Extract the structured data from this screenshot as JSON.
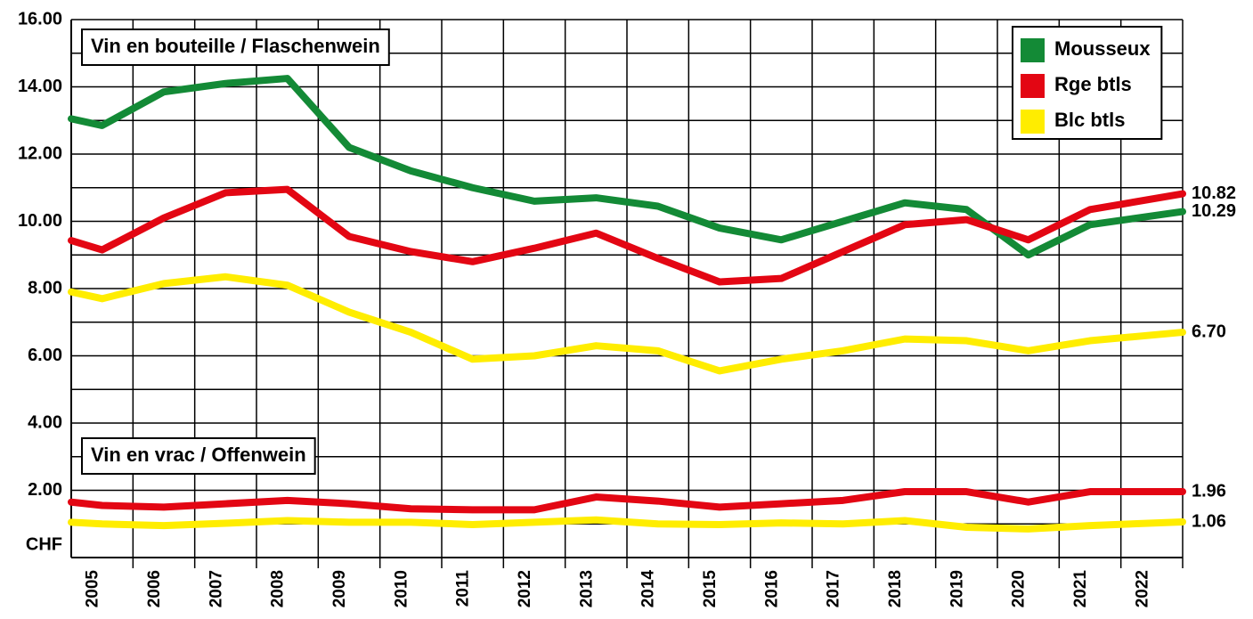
{
  "chart_data": {
    "type": "line",
    "annotations": [
      "Vin en bouteille / Flaschenwein",
      "Vin en vrac / Offenwein"
    ],
    "x": [
      2004.5,
      2005,
      2006,
      2007,
      2008,
      2009,
      2010,
      2011,
      2012,
      2013,
      2014,
      2015,
      2016,
      2017,
      2018,
      2019,
      2020,
      2021,
      2022.5
    ],
    "xlim": [
      2004.5,
      2022.5
    ],
    "xticks": [
      2005,
      2006,
      2007,
      2008,
      2009,
      2010,
      2011,
      2012,
      2013,
      2014,
      2015,
      2016,
      2017,
      2018,
      2019,
      2020,
      2021,
      2022
    ],
    "ylim": [
      0,
      16
    ],
    "yticks": [
      {
        "value": 0,
        "label": "CHF"
      },
      {
        "value": 2,
        "label": "2.00"
      },
      {
        "value": 4,
        "label": "4.00"
      },
      {
        "value": 6,
        "label": "6.00"
      },
      {
        "value": 8,
        "label": "8.00"
      },
      {
        "value": 10,
        "label": "10.00"
      },
      {
        "value": 12,
        "label": "12.00"
      },
      {
        "value": 14,
        "label": "14.00"
      },
      {
        "value": 16,
        "label": "16.00"
      }
    ],
    "minor_yticks": [
      1,
      3,
      5,
      7,
      9,
      11,
      13,
      15
    ],
    "grid": true,
    "legend": "upper right",
    "series": [
      {
        "name": "Mousseux",
        "color": "#138a36",
        "label_color": "#138a36",
        "values": [
          13.05,
          12.85,
          13.85,
          14.1,
          14.25,
          12.2,
          11.5,
          11.0,
          10.6,
          10.7,
          10.45,
          9.8,
          9.45,
          10.0,
          10.55,
          10.35,
          9.0,
          9.9,
          10.29
        ],
        "value_labels": [
          null,
          null,
          null,
          null,
          null,
          null,
          null,
          null,
          null,
          null,
          null,
          null,
          null,
          null,
          null,
          null,
          null,
          null,
          "10.29"
        ]
      },
      {
        "name": "Rge btls",
        "color": "#e30613",
        "label_color": "#e30613",
        "values": [
          9.43,
          9.15,
          10.1,
          10.85,
          10.95,
          9.55,
          9.1,
          8.8,
          9.2,
          9.65,
          8.9,
          8.2,
          8.3,
          9.1,
          9.9,
          10.05,
          9.45,
          10.35,
          10.82
        ],
        "value_labels": [
          null,
          null,
          null,
          null,
          null,
          null,
          null,
          null,
          null,
          null,
          null,
          null,
          null,
          null,
          null,
          null,
          null,
          null,
          "10.82"
        ]
      },
      {
        "name": "Blc btls",
        "color": "#ffed00",
        "label_color": "#000000",
        "values": [
          7.9,
          7.7,
          8.15,
          8.35,
          8.1,
          7.3,
          6.7,
          5.9,
          6.0,
          6.3,
          6.15,
          5.55,
          5.9,
          6.15,
          6.5,
          6.45,
          6.15,
          6.45,
          6.7
        ],
        "value_labels": [
          null,
          null,
          null,
          null,
          null,
          null,
          null,
          null,
          null,
          null,
          null,
          null,
          null,
          null,
          null,
          null,
          null,
          null,
          "6.70"
        ]
      },
      {
        "color": "#e30613",
        "label_color": "#e30613",
        "values": [
          1.65,
          1.55,
          1.5,
          1.6,
          1.7,
          1.6,
          1.45,
          1.42,
          1.42,
          1.8,
          1.68,
          1.5,
          1.6,
          1.7,
          1.96,
          1.96,
          1.65,
          1.96,
          1.96
        ],
        "value_labels": [
          null,
          null,
          null,
          null,
          null,
          null,
          null,
          null,
          null,
          null,
          null,
          null,
          null,
          null,
          null,
          null,
          null,
          null,
          "1.96"
        ]
      },
      {
        "color": "#ffed00",
        "label_color": "#000000",
        "values": [
          1.05,
          1.0,
          0.95,
          1.02,
          1.1,
          1.05,
          1.05,
          0.98,
          1.05,
          1.12,
          1.0,
          0.98,
          1.03,
          1.0,
          1.1,
          0.9,
          0.85,
          0.95,
          1.06
        ],
        "value_labels": [
          null,
          null,
          null,
          null,
          null,
          null,
          null,
          null,
          null,
          null,
          null,
          null,
          null,
          null,
          null,
          null,
          null,
          null,
          "1.06"
        ]
      }
    ]
  }
}
